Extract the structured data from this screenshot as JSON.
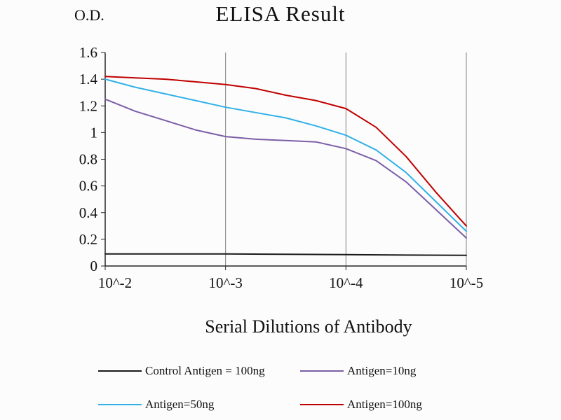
{
  "header": {
    "title": "ELISA Result",
    "y_unit_label": "O.D."
  },
  "chart_data": {
    "type": "line",
    "title": "ELISA Result",
    "ylabel": "O.D.",
    "xlabel": "Serial Dilutions of Antibody",
    "x_tick_labels": [
      "10^-2",
      "10^-3",
      "10^-4",
      "10^-5"
    ],
    "y_ticks": [
      0,
      0.2,
      0.4,
      0.6,
      0.8,
      1,
      1.2,
      1.4,
      1.6
    ],
    "y_tick_labels": [
      "0",
      "0.2",
      "0.4",
      "0.6",
      "0.8",
      "1",
      "1.2",
      "1.4",
      "1.6"
    ],
    "ylim": [
      0,
      1.6
    ],
    "grid": "vertical-only",
    "legend_position": "bottom",
    "axis_color": "#262626",
    "grid_color": "#7f7f7f",
    "series": [
      {
        "name": "Control Antigen = 100ng",
        "color": "#1a1a1a",
        "points": [
          [
            0,
            0.09
          ],
          [
            0.5,
            0.09
          ],
          [
            1,
            0.09
          ],
          [
            1.5,
            0.088
          ],
          [
            2,
            0.085
          ],
          [
            2.5,
            0.082
          ],
          [
            3,
            0.08
          ]
        ]
      },
      {
        "name": "Antigen=10ng",
        "color": "#7B5EA7",
        "points": [
          [
            0,
            1.25
          ],
          [
            0.25,
            1.16
          ],
          [
            0.5,
            1.09
          ],
          [
            0.75,
            1.02
          ],
          [
            1,
            0.97
          ],
          [
            1.25,
            0.95
          ],
          [
            1.5,
            0.94
          ],
          [
            1.75,
            0.93
          ],
          [
            2,
            0.88
          ],
          [
            2.25,
            0.79
          ],
          [
            2.5,
            0.63
          ],
          [
            2.75,
            0.42
          ],
          [
            3,
            0.21
          ]
        ]
      },
      {
        "name": "Antigen=50ng",
        "color": "#31B1E7",
        "points": [
          [
            0,
            1.4
          ],
          [
            0.25,
            1.34
          ],
          [
            0.5,
            1.29
          ],
          [
            0.75,
            1.24
          ],
          [
            1,
            1.19
          ],
          [
            1.25,
            1.15
          ],
          [
            1.5,
            1.11
          ],
          [
            1.75,
            1.05
          ],
          [
            2,
            0.98
          ],
          [
            2.25,
            0.87
          ],
          [
            2.5,
            0.7
          ],
          [
            2.75,
            0.48
          ],
          [
            3,
            0.26
          ]
        ]
      },
      {
        "name": "Antigen=100ng",
        "color": "#C00000",
        "points": [
          [
            0,
            1.42
          ],
          [
            0.25,
            1.41
          ],
          [
            0.5,
            1.4
          ],
          [
            0.75,
            1.38
          ],
          [
            1,
            1.36
          ],
          [
            1.25,
            1.33
          ],
          [
            1.5,
            1.28
          ],
          [
            1.75,
            1.24
          ],
          [
            2,
            1.18
          ],
          [
            2.25,
            1.04
          ],
          [
            2.5,
            0.82
          ],
          [
            2.75,
            0.55
          ],
          [
            3,
            0.3
          ]
        ]
      }
    ]
  }
}
